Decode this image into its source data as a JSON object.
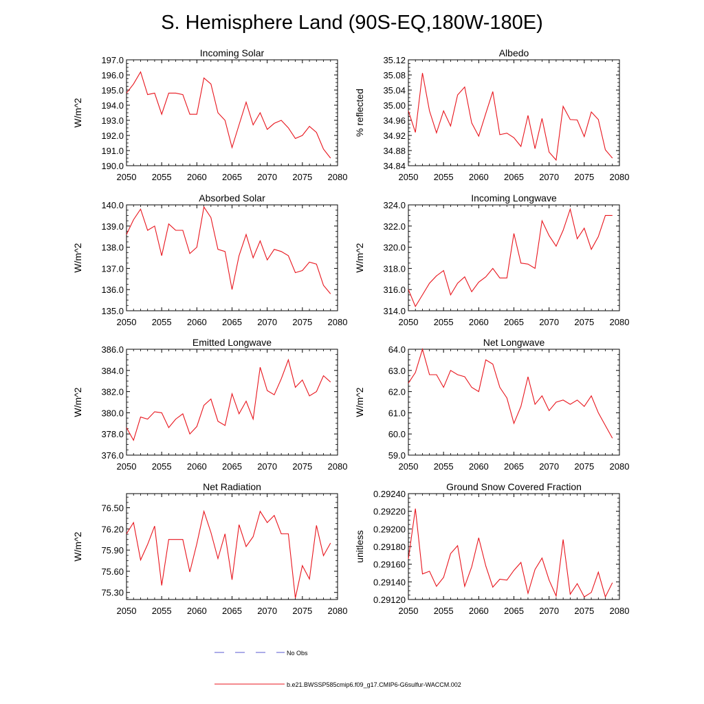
{
  "figure": {
    "title": "S. Hemisphere Land (90S-EQ,180W-180E)",
    "line_color": "#e8141c",
    "obs_color": "#5a5ad2"
  },
  "legend": {
    "obs_label": "No Obs",
    "model_label": "b.e21.BWSSP585cmip6.f09_g17.CMIP6-G6sulfur-WACCM.002"
  },
  "chart_data": [
    {
      "type": "line",
      "title": "Incoming Solar",
      "xlabel": "",
      "ylabel": "W/m^2",
      "xlim": [
        2050,
        2080
      ],
      "ylim": [
        190.0,
        197.0
      ],
      "xticks": [
        2050,
        2055,
        2060,
        2065,
        2070,
        2075,
        2080
      ],
      "xtick_labels": [
        "2050",
        "2055",
        "2060",
        "2065",
        "2070",
        "2075",
        "2080"
      ],
      "yticks": [
        190.0,
        191.0,
        192.0,
        193.0,
        194.0,
        195.0,
        196.0,
        197.0
      ],
      "ytick_labels": [
        "190.0",
        "191.0",
        "192.0",
        "193.0",
        "194.0",
        "195.0",
        "196.0",
        "197.0"
      ],
      "x": [
        2050,
        2051,
        2052,
        2053,
        2054,
        2055,
        2056,
        2057,
        2058,
        2059,
        2060,
        2061,
        2062,
        2063,
        2064,
        2065,
        2066,
        2067,
        2068,
        2069,
        2070,
        2071,
        2072,
        2073,
        2074,
        2075,
        2076,
        2077,
        2078,
        2079
      ],
      "values": [
        194.8,
        195.4,
        196.2,
        194.7,
        194.8,
        193.4,
        194.8,
        194.8,
        194.7,
        193.4,
        193.4,
        195.8,
        195.4,
        193.5,
        193.0,
        191.2,
        192.7,
        194.2,
        192.7,
        193.5,
        192.4,
        192.8,
        193.0,
        192.5,
        191.8,
        192.0,
        192.6,
        192.2,
        191.1,
        190.5
      ]
    },
    {
      "type": "line",
      "title": "Albedo",
      "xlabel": "",
      "ylabel": "% reflected",
      "xlim": [
        2050,
        2080
      ],
      "ylim": [
        34.84,
        35.12
      ],
      "xticks": [
        2050,
        2055,
        2060,
        2065,
        2070,
        2075,
        2080
      ],
      "xtick_labels": [
        "2050",
        "2055",
        "2060",
        "2065",
        "2070",
        "2075",
        "2080"
      ],
      "yticks": [
        34.84,
        34.88,
        34.92,
        34.96,
        35.0,
        35.04,
        35.08,
        35.12
      ],
      "ytick_labels": [
        "34.84",
        "34.88",
        "34.92",
        "34.96",
        "35.00",
        "35.04",
        "35.08",
        "35.12"
      ],
      "x": [
        2050,
        2051,
        2052,
        2053,
        2054,
        2055,
        2056,
        2057,
        2058,
        2059,
        2060,
        2061,
        2062,
        2063,
        2064,
        2065,
        2066,
        2067,
        2068,
        2069,
        2070,
        2071,
        2072,
        2073,
        2074,
        2075,
        2076,
        2077,
        2078,
        2079
      ],
      "values": [
        34.985,
        34.928,
        35.085,
        34.985,
        34.927,
        34.985,
        34.945,
        35.027,
        35.048,
        34.953,
        34.918,
        34.978,
        35.036,
        34.922,
        34.926,
        34.914,
        34.891,
        34.973,
        34.885,
        34.965,
        34.876,
        34.855,
        34.997,
        34.962,
        34.961,
        34.917,
        34.982,
        34.962,
        34.882,
        34.86
      ]
    },
    {
      "type": "line",
      "title": "Absorbed Solar",
      "xlabel": "",
      "ylabel": "W/m^2",
      "xlim": [
        2050,
        2080
      ],
      "ylim": [
        135.0,
        140.0
      ],
      "xticks": [
        2050,
        2055,
        2060,
        2065,
        2070,
        2075,
        2080
      ],
      "xtick_labels": [
        "2050",
        "2055",
        "2060",
        "2065",
        "2070",
        "2075",
        "2080"
      ],
      "yticks": [
        135.0,
        136.0,
        137.0,
        138.0,
        139.0,
        140.0
      ],
      "ytick_labels": [
        "135.0",
        "136.0",
        "137.0",
        "138.0",
        "139.0",
        "140.0"
      ],
      "x": [
        2050,
        2051,
        2052,
        2053,
        2054,
        2055,
        2056,
        2057,
        2058,
        2059,
        2060,
        2061,
        2062,
        2063,
        2064,
        2065,
        2066,
        2067,
        2068,
        2069,
        2070,
        2071,
        2072,
        2073,
        2074,
        2075,
        2076,
        2077,
        2078,
        2079
      ],
      "values": [
        138.6,
        139.3,
        139.8,
        138.8,
        139.0,
        137.6,
        139.1,
        138.8,
        138.8,
        137.7,
        138.0,
        139.9,
        139.4,
        137.9,
        137.8,
        136.0,
        137.6,
        138.6,
        137.5,
        138.3,
        137.4,
        137.9,
        137.8,
        137.6,
        136.8,
        136.9,
        137.3,
        137.2,
        136.2,
        135.8
      ]
    },
    {
      "type": "line",
      "title": "Incoming Longwave",
      "xlabel": "",
      "ylabel": "W/m^2",
      "xlim": [
        2050,
        2080
      ],
      "ylim": [
        314.0,
        324.0
      ],
      "xticks": [
        2050,
        2055,
        2060,
        2065,
        2070,
        2075,
        2080
      ],
      "xtick_labels": [
        "2050",
        "2055",
        "2060",
        "2065",
        "2070",
        "2075",
        "2080"
      ],
      "yticks": [
        314.0,
        316.0,
        318.0,
        320.0,
        322.0,
        324.0
      ],
      "ytick_labels": [
        "314.0",
        "316.0",
        "318.0",
        "320.0",
        "322.0",
        "324.0"
      ],
      "x": [
        2050,
        2051,
        2052,
        2053,
        2054,
        2055,
        2056,
        2057,
        2058,
        2059,
        2060,
        2061,
        2062,
        2063,
        2064,
        2065,
        2066,
        2067,
        2068,
        2069,
        2070,
        2071,
        2072,
        2073,
        2074,
        2075,
        2076,
        2077,
        2078,
        2079
      ],
      "values": [
        316.0,
        314.4,
        315.5,
        316.6,
        317.3,
        317.8,
        315.5,
        316.6,
        317.2,
        315.8,
        316.7,
        317.2,
        318.0,
        317.1,
        317.1,
        321.3,
        318.5,
        318.4,
        318.0,
        322.5,
        321.1,
        320.1,
        321.6,
        323.6,
        320.8,
        321.8,
        319.8,
        321.0,
        323.0,
        323.0
      ]
    },
    {
      "type": "line",
      "title": "Emitted Longwave",
      "xlabel": "",
      "ylabel": "W/m^2",
      "xlim": [
        2050,
        2080
      ],
      "ylim": [
        376.0,
        386.0
      ],
      "xticks": [
        2050,
        2055,
        2060,
        2065,
        2070,
        2075,
        2080
      ],
      "xtick_labels": [
        "2050",
        "2055",
        "2060",
        "2065",
        "2070",
        "2075",
        "2080"
      ],
      "yticks": [
        376.0,
        378.0,
        380.0,
        382.0,
        384.0,
        386.0
      ],
      "ytick_labels": [
        "376.0",
        "378.0",
        "380.0",
        "382.0",
        "384.0",
        "386.0"
      ],
      "x": [
        2050,
        2051,
        2052,
        2053,
        2054,
        2055,
        2056,
        2057,
        2058,
        2059,
        2060,
        2061,
        2062,
        2063,
        2064,
        2065,
        2066,
        2067,
        2068,
        2069,
        2070,
        2071,
        2072,
        2073,
        2074,
        2075,
        2076,
        2077,
        2078,
        2079
      ],
      "values": [
        378.6,
        377.4,
        379.6,
        379.4,
        380.1,
        380.0,
        378.6,
        379.4,
        379.9,
        378.0,
        378.7,
        380.7,
        381.3,
        379.2,
        378.8,
        381.8,
        379.9,
        381.1,
        379.4,
        384.3,
        382.1,
        381.7,
        383.2,
        385.0,
        382.4,
        383.1,
        381.6,
        382.0,
        383.5,
        382.9
      ]
    },
    {
      "type": "line",
      "title": "Net Longwave",
      "xlabel": "",
      "ylabel": "W/m^2",
      "xlim": [
        2050,
        2080
      ],
      "ylim": [
        59.0,
        64.0
      ],
      "xticks": [
        2050,
        2055,
        2060,
        2065,
        2070,
        2075,
        2080
      ],
      "xtick_labels": [
        "2050",
        "2055",
        "2060",
        "2065",
        "2070",
        "2075",
        "2080"
      ],
      "yticks": [
        59.0,
        60.0,
        61.0,
        62.0,
        63.0,
        64.0
      ],
      "ytick_labels": [
        "59.0",
        "60.0",
        "61.0",
        "62.0",
        "63.0",
        "64.0"
      ],
      "x": [
        2050,
        2051,
        2052,
        2053,
        2054,
        2055,
        2056,
        2057,
        2058,
        2059,
        2060,
        2061,
        2062,
        2063,
        2064,
        2065,
        2066,
        2067,
        2068,
        2069,
        2070,
        2071,
        2072,
        2073,
        2074,
        2075,
        2076,
        2077,
        2078,
        2079
      ],
      "values": [
        62.4,
        62.9,
        64.0,
        62.8,
        62.8,
        62.2,
        63.0,
        62.8,
        62.7,
        62.2,
        62.0,
        63.5,
        63.3,
        62.2,
        61.7,
        60.5,
        61.3,
        62.7,
        61.4,
        61.8,
        61.1,
        61.5,
        61.6,
        61.4,
        61.6,
        61.3,
        61.8,
        61.0,
        60.4,
        59.8
      ]
    },
    {
      "type": "line",
      "title": "Net Radiation",
      "xlabel": "",
      "ylabel": "W/m^2",
      "xlim": [
        2050,
        2080
      ],
      "ylim": [
        75.2,
        76.7
      ],
      "xticks": [
        2050,
        2055,
        2060,
        2065,
        2070,
        2075,
        2080
      ],
      "xtick_labels": [
        "2050",
        "2055",
        "2060",
        "2065",
        "2070",
        "2075",
        "2080"
      ],
      "yticks": [
        75.3,
        75.6,
        75.9,
        76.2,
        76.5
      ],
      "ytick_labels": [
        "75.30",
        "75.60",
        "75.90",
        "76.20",
        "76.50"
      ],
      "x": [
        2050,
        2051,
        2052,
        2053,
        2054,
        2055,
        2056,
        2057,
        2058,
        2059,
        2060,
        2061,
        2062,
        2063,
        2064,
        2065,
        2066,
        2067,
        2068,
        2069,
        2070,
        2071,
        2072,
        2073,
        2074,
        2075,
        2076,
        2077,
        2078,
        2079
      ],
      "values": [
        76.13,
        76.29,
        75.76,
        75.98,
        76.24,
        75.4,
        76.05,
        76.05,
        76.05,
        75.59,
        75.99,
        76.45,
        76.15,
        75.78,
        76.13,
        75.48,
        76.26,
        75.95,
        76.09,
        76.45,
        76.29,
        76.39,
        76.13,
        76.13,
        75.22,
        75.68,
        75.49,
        76.25,
        75.82,
        76.0
      ]
    },
    {
      "type": "line",
      "title": "Ground Snow Covered Fraction",
      "xlabel": "",
      "ylabel": "unitless",
      "xlim": [
        2050,
        2080
      ],
      "ylim": [
        0.2912,
        0.2924
      ],
      "xticks": [
        2050,
        2055,
        2060,
        2065,
        2070,
        2075,
        2080
      ],
      "xtick_labels": [
        "2050",
        "2055",
        "2060",
        "2065",
        "2070",
        "2075",
        "2080"
      ],
      "yticks": [
        0.2912,
        0.2914,
        0.2916,
        0.2918,
        0.292,
        0.2922,
        0.2924
      ],
      "ytick_labels": [
        "0.29120",
        "0.29140",
        "0.29160",
        "0.29180",
        "0.29200",
        "0.29220",
        "0.29240"
      ],
      "x": [
        2050,
        2051,
        2052,
        2053,
        2054,
        2055,
        2056,
        2057,
        2058,
        2059,
        2060,
        2061,
        2062,
        2063,
        2064,
        2065,
        2066,
        2067,
        2068,
        2069,
        2070,
        2071,
        2072,
        2073,
        2074,
        2075,
        2076,
        2077,
        2078,
        2079
      ],
      "values": [
        0.29166,
        0.29223,
        0.29149,
        0.29152,
        0.29135,
        0.29145,
        0.29172,
        0.29181,
        0.29135,
        0.29157,
        0.2919,
        0.29158,
        0.29134,
        0.29143,
        0.29142,
        0.29153,
        0.29162,
        0.29127,
        0.29154,
        0.29167,
        0.29142,
        0.29124,
        0.29188,
        0.29126,
        0.29138,
        0.29123,
        0.29128,
        0.29151,
        0.29123,
        0.29139
      ]
    }
  ]
}
